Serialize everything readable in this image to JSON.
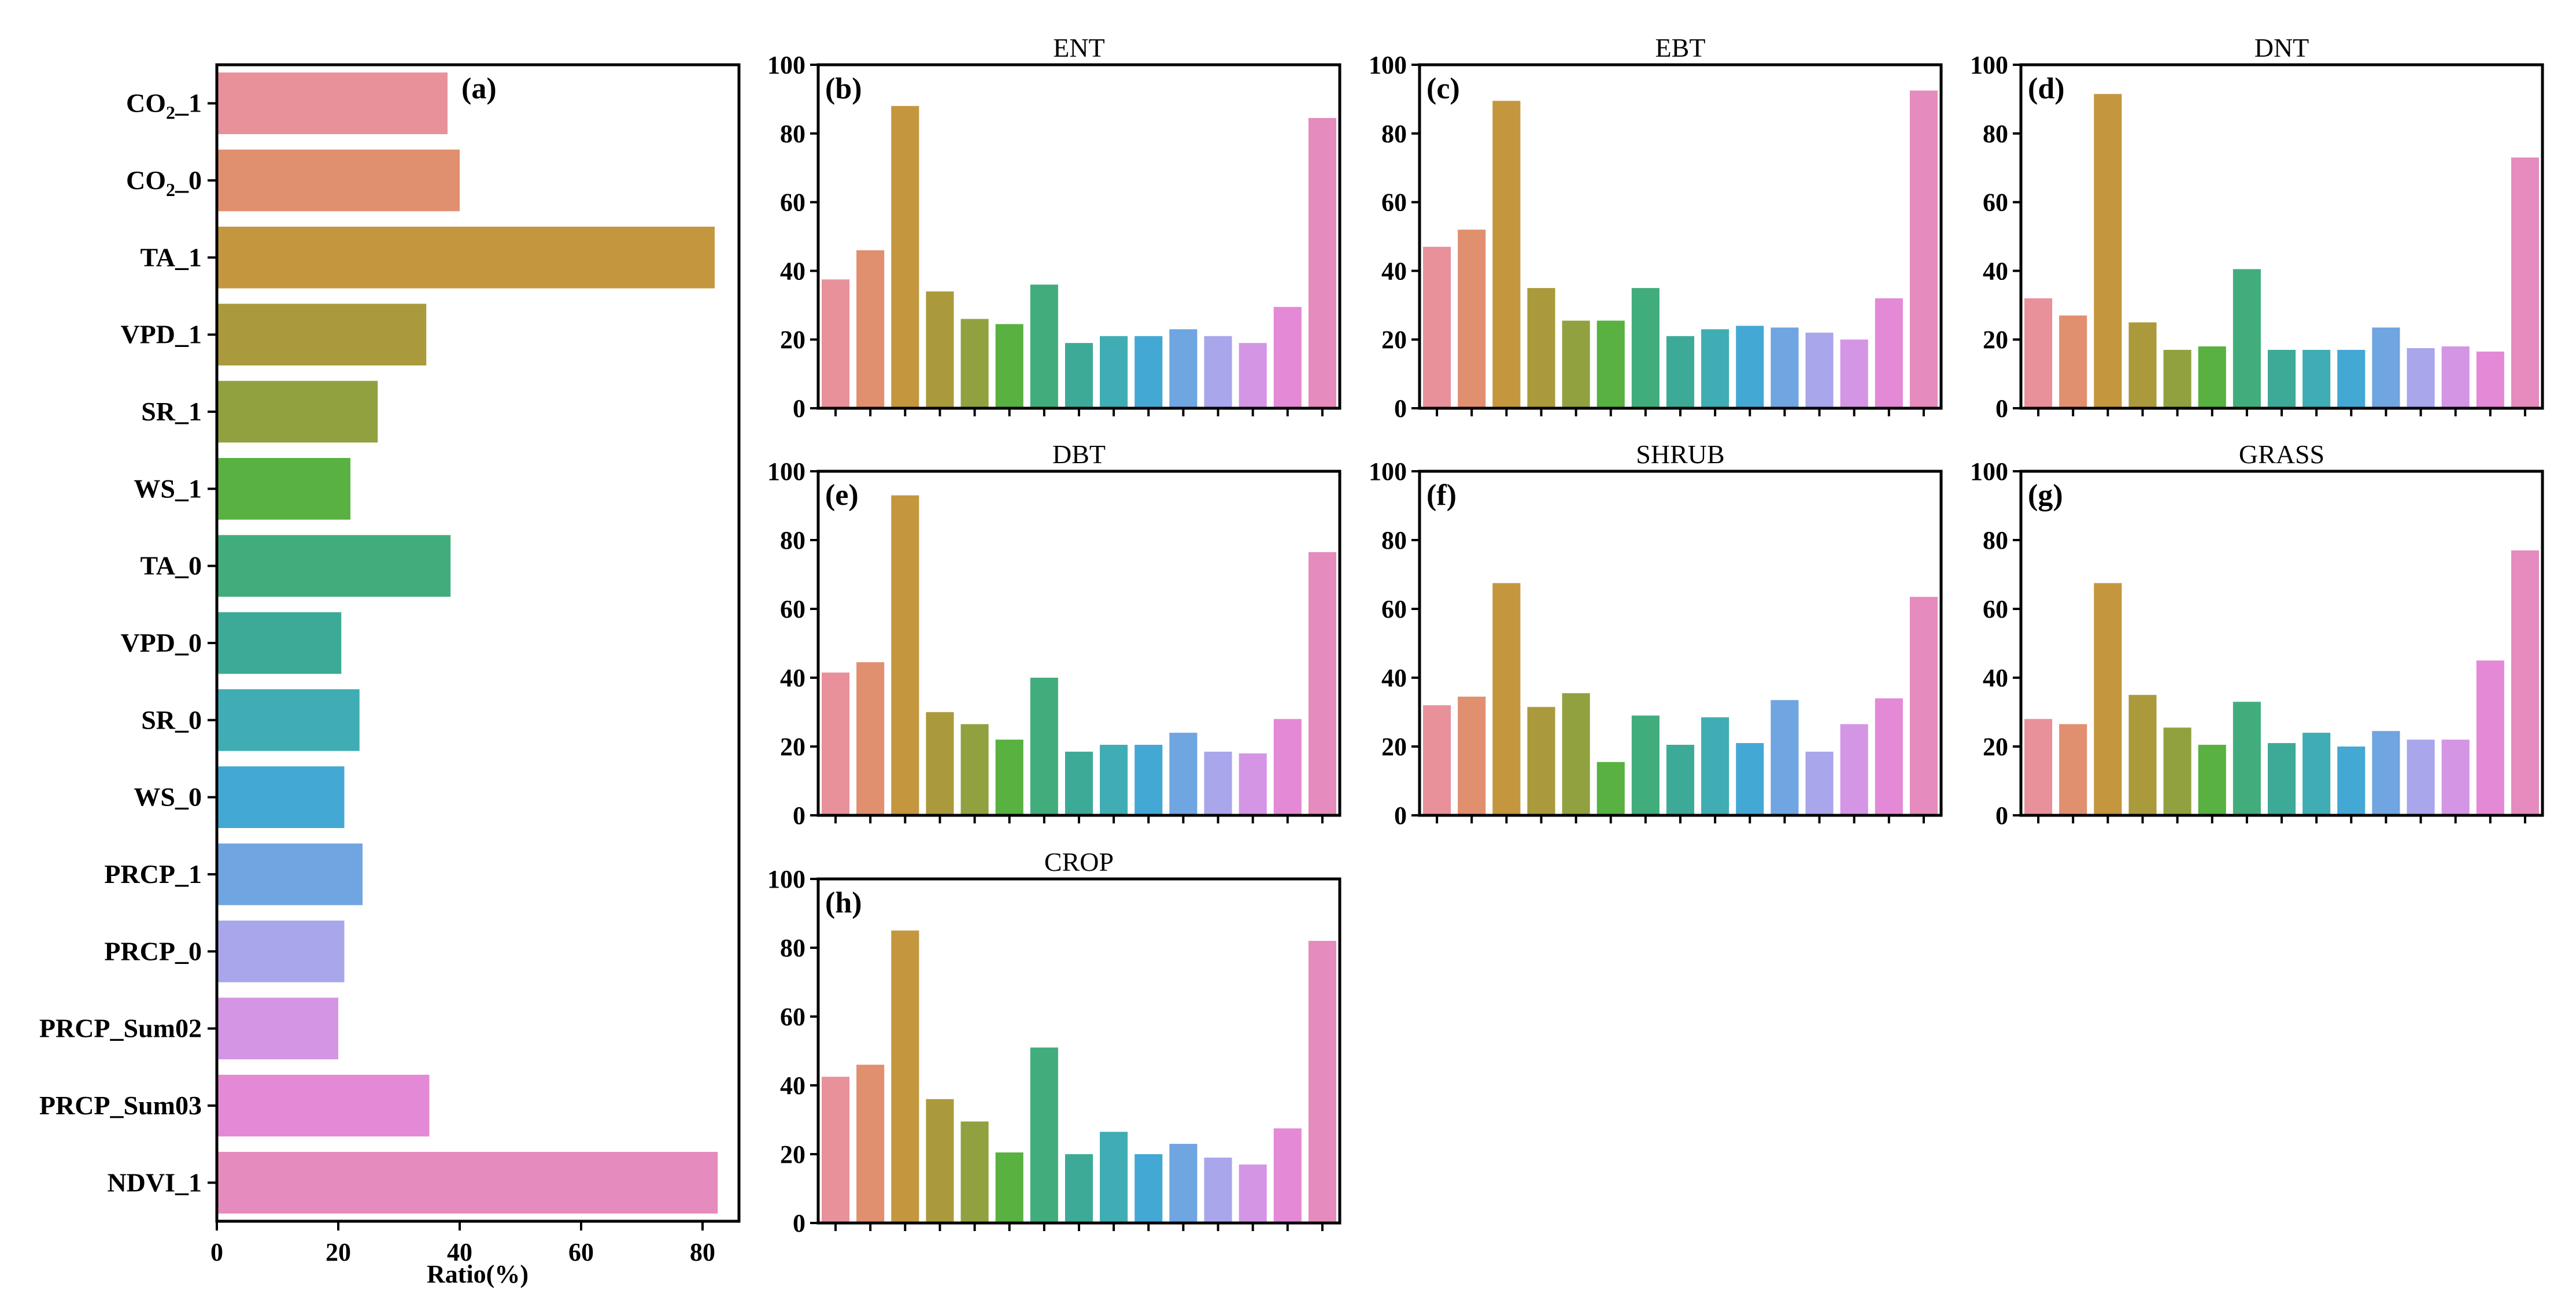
{
  "colors": [
    "#e8919b",
    "#e08f6f",
    "#c4973f",
    "#aa9a3c",
    "#91a13f",
    "#58b140",
    "#42ad7c",
    "#3daa98",
    "#3fadb3",
    "#44a8d4",
    "#6fa5e0",
    "#a9a6ec",
    "#d495e4",
    "#e389d6",
    "#e58bbd"
  ],
  "chart_data": [
    {
      "panel": "(a)",
      "type": "bar",
      "orientation": "horizontal",
      "title": "",
      "xlabel": "Ratio(%)",
      "categories": [
        {
          "base": "CO",
          "sub": "2",
          "tail": "_1"
        },
        {
          "base": "CO",
          "sub": "2",
          "tail": "_0"
        },
        {
          "base": "TA_1"
        },
        {
          "base": "VPD_1"
        },
        {
          "base": "SR_1"
        },
        {
          "base": "WS_1"
        },
        {
          "base": "TA_0"
        },
        {
          "base": "VPD_0"
        },
        {
          "base": "SR_0"
        },
        {
          "base": "WS_0"
        },
        {
          "base": "PRCP_1"
        },
        {
          "base": "PRCP_0"
        },
        {
          "base": "PRCP_Sum02"
        },
        {
          "base": "PRCP_Sum03"
        },
        {
          "base": "NDVI_1"
        }
      ],
      "values": [
        38,
        40,
        82,
        34.5,
        26.5,
        22,
        38.5,
        20.5,
        23.5,
        21,
        24,
        21,
        20,
        35,
        82.5
      ],
      "xlim": [
        0,
        86
      ],
      "xticks": [
        0,
        20,
        40,
        60,
        80
      ]
    },
    {
      "panel": "(b)",
      "type": "bar",
      "title": "ENT",
      "ylim": [
        0,
        100
      ],
      "yticks": [
        0,
        20,
        40,
        60,
        80,
        100
      ],
      "values": [
        37.5,
        46,
        88,
        34,
        26,
        24.5,
        36,
        19,
        21,
        21,
        23,
        21,
        19,
        29.5,
        84.5
      ]
    },
    {
      "panel": "(c)",
      "type": "bar",
      "title": "EBT",
      "ylim": [
        0,
        100
      ],
      "yticks": [
        0,
        20,
        40,
        60,
        80,
        100
      ],
      "values": [
        47,
        52,
        89.5,
        35,
        25.5,
        25.5,
        35,
        21,
        23,
        24,
        23.5,
        22,
        20,
        32,
        92.5
      ]
    },
    {
      "panel": "(d)",
      "type": "bar",
      "title": "DNT",
      "ylim": [
        0,
        100
      ],
      "yticks": [
        0,
        20,
        40,
        60,
        80,
        100
      ],
      "values": [
        32,
        27,
        91.5,
        25,
        17,
        18,
        40.5,
        17,
        17,
        17,
        23.5,
        17.5,
        18,
        16.5,
        73
      ]
    },
    {
      "panel": "(e)",
      "type": "bar",
      "title": "DBT",
      "ylim": [
        0,
        100
      ],
      "yticks": [
        0,
        20,
        40,
        60,
        80,
        100
      ],
      "values": [
        41.5,
        44.5,
        93,
        30,
        26.5,
        22,
        40,
        18.5,
        20.5,
        20.5,
        24,
        18.5,
        18,
        28,
        76.5
      ]
    },
    {
      "panel": "(f)",
      "type": "bar",
      "title": "SHRUB",
      "ylim": [
        0,
        100
      ],
      "yticks": [
        0,
        20,
        40,
        60,
        80,
        100
      ],
      "values": [
        32,
        34.5,
        67.5,
        31.5,
        35.5,
        15.5,
        29,
        20.5,
        28.5,
        21,
        33.5,
        18.5,
        26.5,
        34,
        63.5
      ]
    },
    {
      "panel": "(g)",
      "type": "bar",
      "title": "GRASS",
      "ylim": [
        0,
        100
      ],
      "yticks": [
        0,
        20,
        40,
        60,
        80,
        100
      ],
      "values": [
        28,
        26.5,
        67.5,
        35,
        25.5,
        20.5,
        33,
        21,
        24,
        20,
        24.5,
        22,
        22,
        45,
        77
      ]
    },
    {
      "panel": "(h)",
      "type": "bar",
      "title": "CROP",
      "ylim": [
        0,
        100
      ],
      "yticks": [
        0,
        20,
        40,
        60,
        80,
        100
      ],
      "values": [
        42.5,
        46,
        85,
        36,
        29.5,
        20.5,
        51,
        20,
        26.5,
        20,
        23,
        19,
        17,
        27.5,
        82
      ]
    }
  ]
}
